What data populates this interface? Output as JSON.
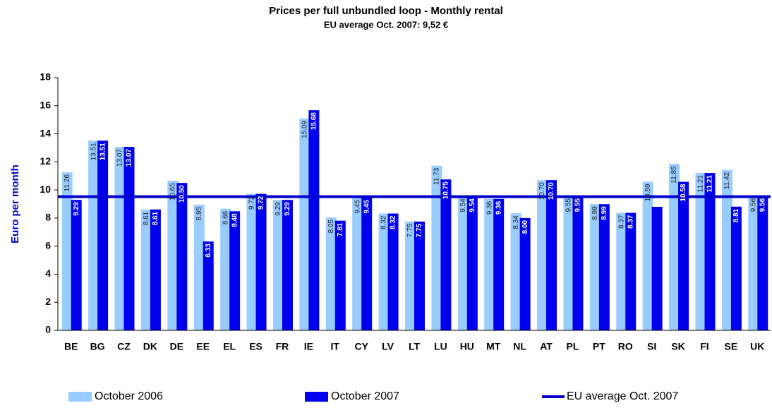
{
  "chart_data": {
    "type": "bar",
    "title": "Prices per full unbundled loop - Monthly rental",
    "subtitle": "EU average Oct. 2007: 9,52 €",
    "y_label": "Euro per month",
    "categories": [
      "BE",
      "BG",
      "CZ",
      "DK",
      "DE",
      "EE",
      "EL",
      "ES",
      "FR",
      "IE",
      "IT",
      "CY",
      "LV",
      "LT",
      "LU",
      "HU",
      "MT",
      "NL",
      "AT",
      "PL",
      "PT",
      "RO",
      "SI",
      "SK",
      "FI",
      "SE",
      "UK"
    ],
    "series": [
      {
        "name": "October 2006",
        "color": "#99ccff",
        "values": [
          11.26,
          13.51,
          13.07,
          8.61,
          10.65,
          8.95,
          8.66,
          9.72,
          9.29,
          15.09,
          8.05,
          9.45,
          8.32,
          7.75,
          11.73,
          9.54,
          9.36,
          8.34,
          10.7,
          9.55,
          8.99,
          8.37,
          10.59,
          11.85,
          11.21,
          11.42,
          9.56
        ],
        "value_labels": [
          "11.26",
          "13.51",
          "13.07",
          "8.61",
          "10.65",
          "8.95",
          "8.66",
          "9.72",
          "9.29",
          "15.09",
          "8.05",
          "9.45",
          "8.32",
          "7.75",
          "11.73",
          "9.54",
          "9.36",
          "8.34",
          "10.70",
          "9.55",
          "8.99",
          "8.37",
          "10.59",
          "11.85",
          "11.21",
          "11.42",
          "9.56"
        ]
      },
      {
        "name": "October 2007",
        "color": "#0000ee",
        "values": [
          9.29,
          13.51,
          13.07,
          8.61,
          10.5,
          6.33,
          8.48,
          9.72,
          9.29,
          15.68,
          7.81,
          9.45,
          8.32,
          7.75,
          10.75,
          9.54,
          9.36,
          8.0,
          10.7,
          9.55,
          8.99,
          8.37,
          8.8,
          10.58,
          11.21,
          8.81,
          9.56
        ],
        "value_labels": [
          "9.29",
          "13.51",
          "13.07",
          "8.61",
          "10.50",
          "6.33",
          "8.48",
          "9.72",
          "9.29",
          "15.68",
          "7.81",
          "9.45",
          "8.32",
          "7.75",
          "10.75",
          "9.54",
          "9.36",
          "8.00",
          "10.70",
          "9.55",
          "8.99",
          "8.37",
          null,
          "10.58",
          "11.21",
          "8.81",
          "9.56"
        ]
      }
    ],
    "reference_line": {
      "name": "EU average Oct. 2007",
      "value": 9.52,
      "color": "#0000cc"
    },
    "ylim": [
      0,
      18
    ],
    "yticks": [
      0,
      2,
      4,
      6,
      8,
      10,
      12,
      14,
      16,
      18
    ],
    "grid": false,
    "legend": "bottom"
  }
}
